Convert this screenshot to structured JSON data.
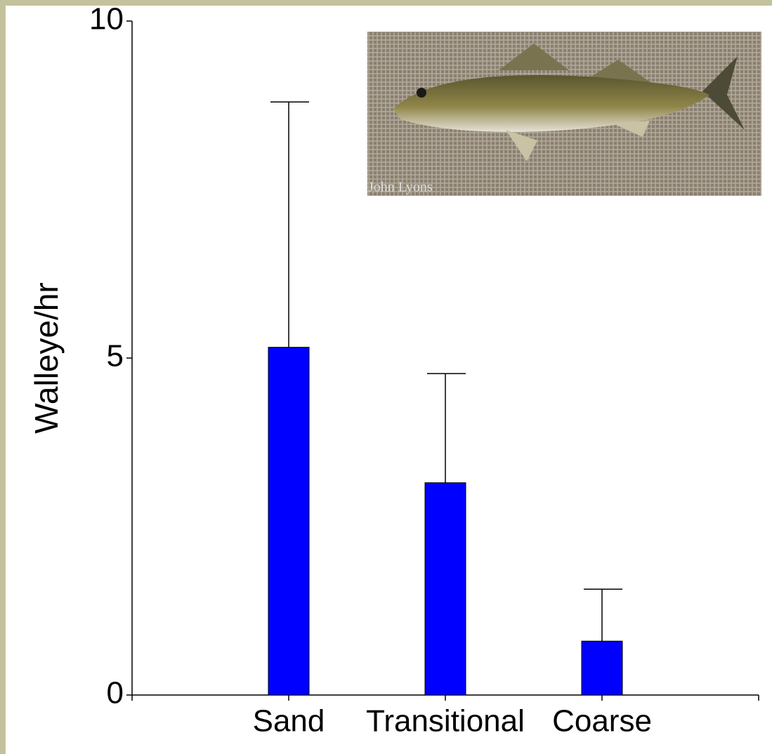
{
  "chart_data": {
    "type": "bar",
    "y_label": "Walleye/hr",
    "categories": [
      "Sand",
      "Transitional",
      "Coarse"
    ],
    "values": [
      5.16,
      3.15,
      0.8
    ],
    "errors": [
      3.64,
      1.62,
      0.77
    ],
    "color": "#0000ff",
    "ylim": [
      0,
      10
    ],
    "yticks": [
      0,
      5,
      10
    ],
    "grid": false,
    "photo_credit": "John Lyons"
  }
}
